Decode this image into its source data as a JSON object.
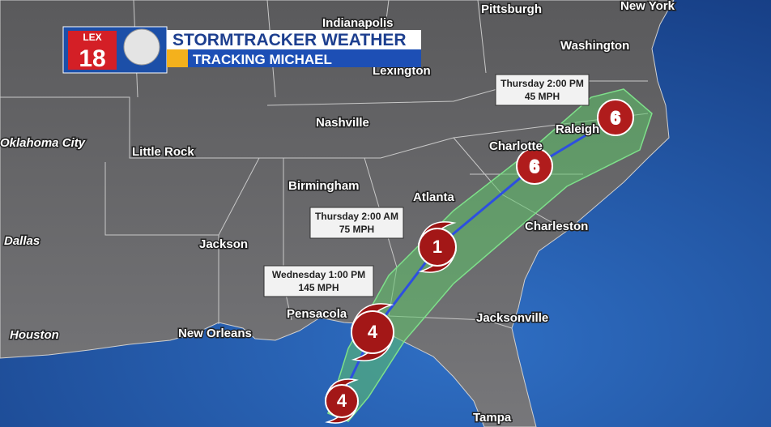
{
  "header": {
    "logo_station": "LEX",
    "logo_number": "18",
    "title": "STORMTRACKER WEATHER",
    "subtitle": "TRACKING MICHAEL"
  },
  "cities": [
    "Indianapolis",
    "Pittsburgh",
    "New York",
    "Washington",
    "Lexington",
    "Nashville",
    "Raleigh",
    "Charlotte",
    "Oklahoma City",
    "Little Rock",
    "Birmingham",
    "Atlanta",
    "Charleston",
    "Dallas",
    "Jackson",
    "Pensacola",
    "Jacksonville",
    "Houston",
    "New Orleans",
    "Tampa"
  ],
  "callouts": [
    {
      "time": "Thursday 2:00 PM",
      "wind": "45 MPH"
    },
    {
      "time": "Thursday 2:00 AM",
      "wind": "75 MPH"
    },
    {
      "time": "Wednesday 1:00 PM",
      "wind": "145 MPH"
    }
  ],
  "storm_points": [
    {
      "category": 4
    },
    {
      "category": 4
    },
    {
      "category": 1
    }
  ]
}
